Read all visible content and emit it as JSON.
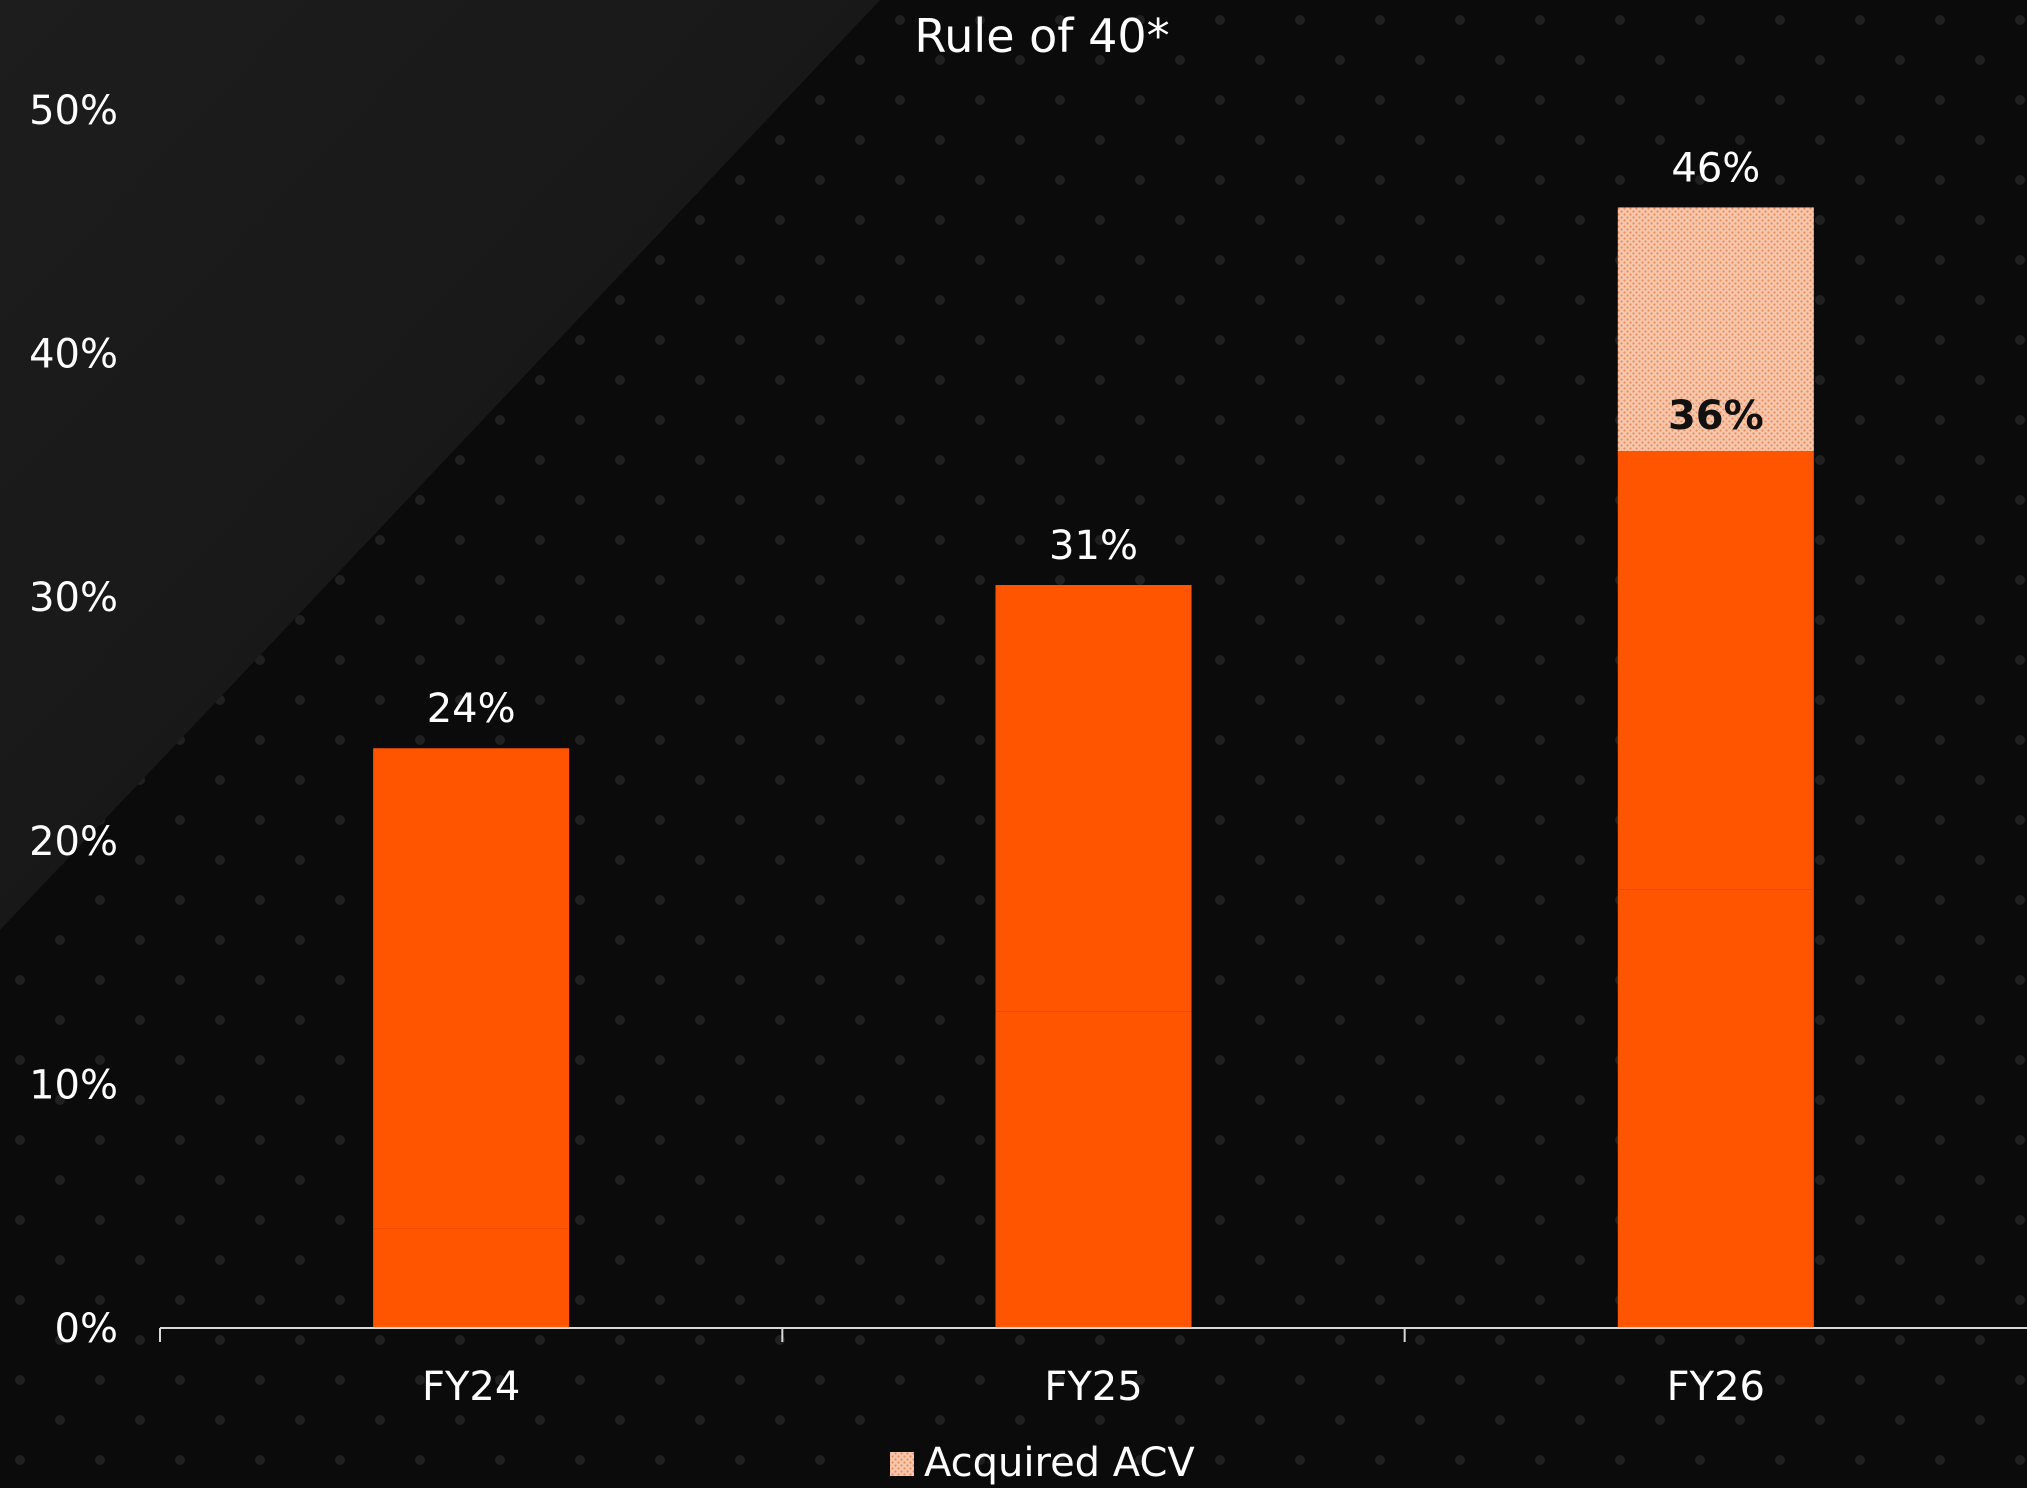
{
  "chart_data": {
    "type": "bar",
    "title": "Rule of 40*",
    "xlabel": "",
    "ylabel": "",
    "ylim": [
      0,
      50
    ],
    "y_ticks": [
      "0%",
      "10%",
      "20%",
      "30%",
      "40%",
      "50%"
    ],
    "categories": [
      "FY24",
      "FY25",
      "FY26"
    ],
    "stacked": true,
    "series": [
      {
        "values": [
          4.1,
          13.0,
          18.0
        ],
        "color": "#ff5500"
      },
      {
        "values": [
          19.7,
          17.5,
          18.0
        ],
        "color": "#ff5500"
      },
      {
        "name": "Acquired ACV",
        "values": [
          0,
          0,
          10.0
        ],
        "color": "#f5b899",
        "pattern": "dotted"
      }
    ],
    "total_labels": [
      "24%",
      "31%",
      "46%"
    ],
    "inner_labels": [
      "",
      "",
      "36%"
    ],
    "legend": {
      "position": "bottom-center",
      "entries": [
        "Acquired ACV"
      ]
    },
    "grid": false
  }
}
